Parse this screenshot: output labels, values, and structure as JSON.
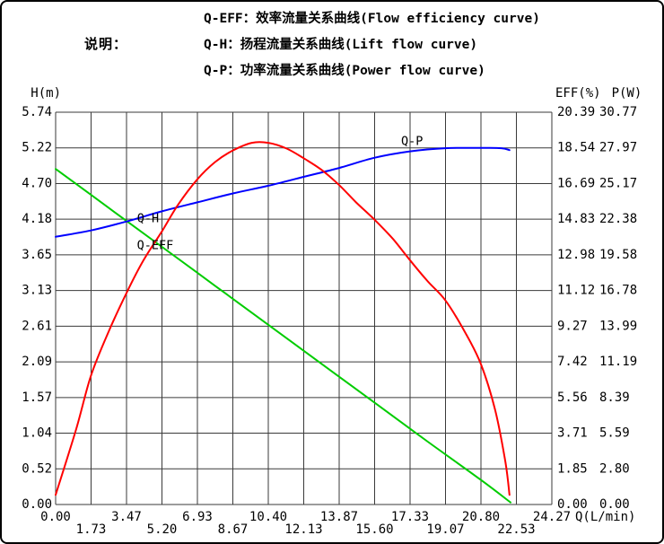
{
  "legend": {
    "title": "说明：",
    "lines": [
      "Q-EFF：效率流量关系曲线(Flow efficiency curve)",
      "Q-H：扬程流量关系曲线(Lift flow curve)",
      "Q-P：功率流量关系曲线(Power flow curve)"
    ]
  },
  "axes": {
    "left_title": "H(m)",
    "right_title_eff": "EFF(%)",
    "right_title_p": "P(W)",
    "x_title": "Q(L/min)"
  },
  "colors": {
    "grid": "#3a3a3a",
    "head_curve": "#00cc00",
    "efficiency_curve": "#ff0000",
    "power_curve": "#0000ff",
    "text": "#000000"
  },
  "chart_data": {
    "type": "line",
    "title": "",
    "grid": true,
    "x_axis": {
      "label": "Q(L/min)",
      "min": 0,
      "max": 24.27,
      "ticks": [
        "0.00",
        "1.73",
        "3.47",
        "5.20",
        "6.93",
        "8.67",
        "10.40",
        "12.13",
        "13.87",
        "15.60",
        "17.33",
        "19.07",
        "20.80",
        "22.53",
        "24.27"
      ]
    },
    "y_axis_left": {
      "label": "H(m)",
      "min": 0,
      "max": 5.74,
      "ticks": [
        "5.74",
        "5.22",
        "4.70",
        "4.18",
        "3.65",
        "3.13",
        "2.61",
        "2.09",
        "1.57",
        "1.04",
        "0.52",
        "0.00"
      ]
    },
    "y_axis_right_eff": {
      "label": "EFF(%)",
      "min": 0,
      "max": 20.39,
      "ticks": [
        "20.39",
        "18.54",
        "16.69",
        "14.83",
        "12.98",
        "11.12",
        "9.27",
        "7.42",
        "5.56",
        "3.71",
        "1.85",
        "0.00"
      ]
    },
    "y_axis_right_p": {
      "label": "P(W)",
      "min": 0,
      "max": 30.77,
      "ticks": [
        "30.77",
        "27.97",
        "25.17",
        "22.38",
        "19.58",
        "16.78",
        "13.99",
        "11.19",
        "8.39",
        "5.59",
        "2.80",
        "0.00"
      ]
    },
    "series": [
      {
        "name": "Q-H",
        "description": "Lift flow curve",
        "axis": "H",
        "color": "#00cc00",
        "points": [
          [
            0,
            4.91
          ],
          [
            2.6,
            4.34
          ],
          [
            5.2,
            3.77
          ],
          [
            7.8,
            3.2
          ],
          [
            10.4,
            2.63
          ],
          [
            13.0,
            2.06
          ],
          [
            15.6,
            1.49
          ],
          [
            18.2,
            0.92
          ],
          [
            20.8,
            0.36
          ],
          [
            22.25,
            0.03
          ]
        ]
      },
      {
        "name": "Q-EFF",
        "description": "Flow efficiency curve",
        "axis": "EFF",
        "color": "#ff0000",
        "points": [
          [
            0,
            0.5
          ],
          [
            1.0,
            3.9
          ],
          [
            1.73,
            6.7
          ],
          [
            2.6,
            9.0
          ],
          [
            3.47,
            11.0
          ],
          [
            4.3,
            12.7
          ],
          [
            5.2,
            14.2
          ],
          [
            6.0,
            15.6
          ],
          [
            6.93,
            16.9
          ],
          [
            7.8,
            17.8
          ],
          [
            8.67,
            18.4
          ],
          [
            9.6,
            18.8
          ],
          [
            10.4,
            18.8
          ],
          [
            11.3,
            18.5
          ],
          [
            12.13,
            18.0
          ],
          [
            13.0,
            17.4
          ],
          [
            13.87,
            16.6
          ],
          [
            14.7,
            15.7
          ],
          [
            15.6,
            14.8
          ],
          [
            16.5,
            13.8
          ],
          [
            17.33,
            12.7
          ],
          [
            18.2,
            11.6
          ],
          [
            19.07,
            10.6
          ],
          [
            20.0,
            9.0
          ],
          [
            20.8,
            7.3
          ],
          [
            21.5,
            4.9
          ],
          [
            22.0,
            2.2
          ],
          [
            22.2,
            0.5
          ]
        ]
      },
      {
        "name": "Q-P",
        "description": "Power flow curve",
        "axis": "P",
        "color": "#0000ff",
        "points": [
          [
            0,
            21.0
          ],
          [
            1.73,
            21.5
          ],
          [
            3.47,
            22.2
          ],
          [
            5.2,
            23.0
          ],
          [
            6.93,
            23.7
          ],
          [
            8.67,
            24.4
          ],
          [
            10.4,
            25.0
          ],
          [
            12.13,
            25.7
          ],
          [
            13.87,
            26.4
          ],
          [
            15.6,
            27.2
          ],
          [
            17.33,
            27.7
          ],
          [
            19.07,
            27.95
          ],
          [
            20.8,
            27.97
          ],
          [
            21.8,
            27.95
          ],
          [
            22.2,
            27.8
          ]
        ]
      }
    ],
    "curve_labels": [
      {
        "text": "Q-H",
        "axis": "H",
        "q": 4.52,
        "value": 4.19
      },
      {
        "text": "Q-EFF",
        "axis": "EFF",
        "q": 4.87,
        "value": 13.48
      },
      {
        "text": "Q-P",
        "axis": "P",
        "q": 17.43,
        "value": 28.5
      }
    ]
  }
}
